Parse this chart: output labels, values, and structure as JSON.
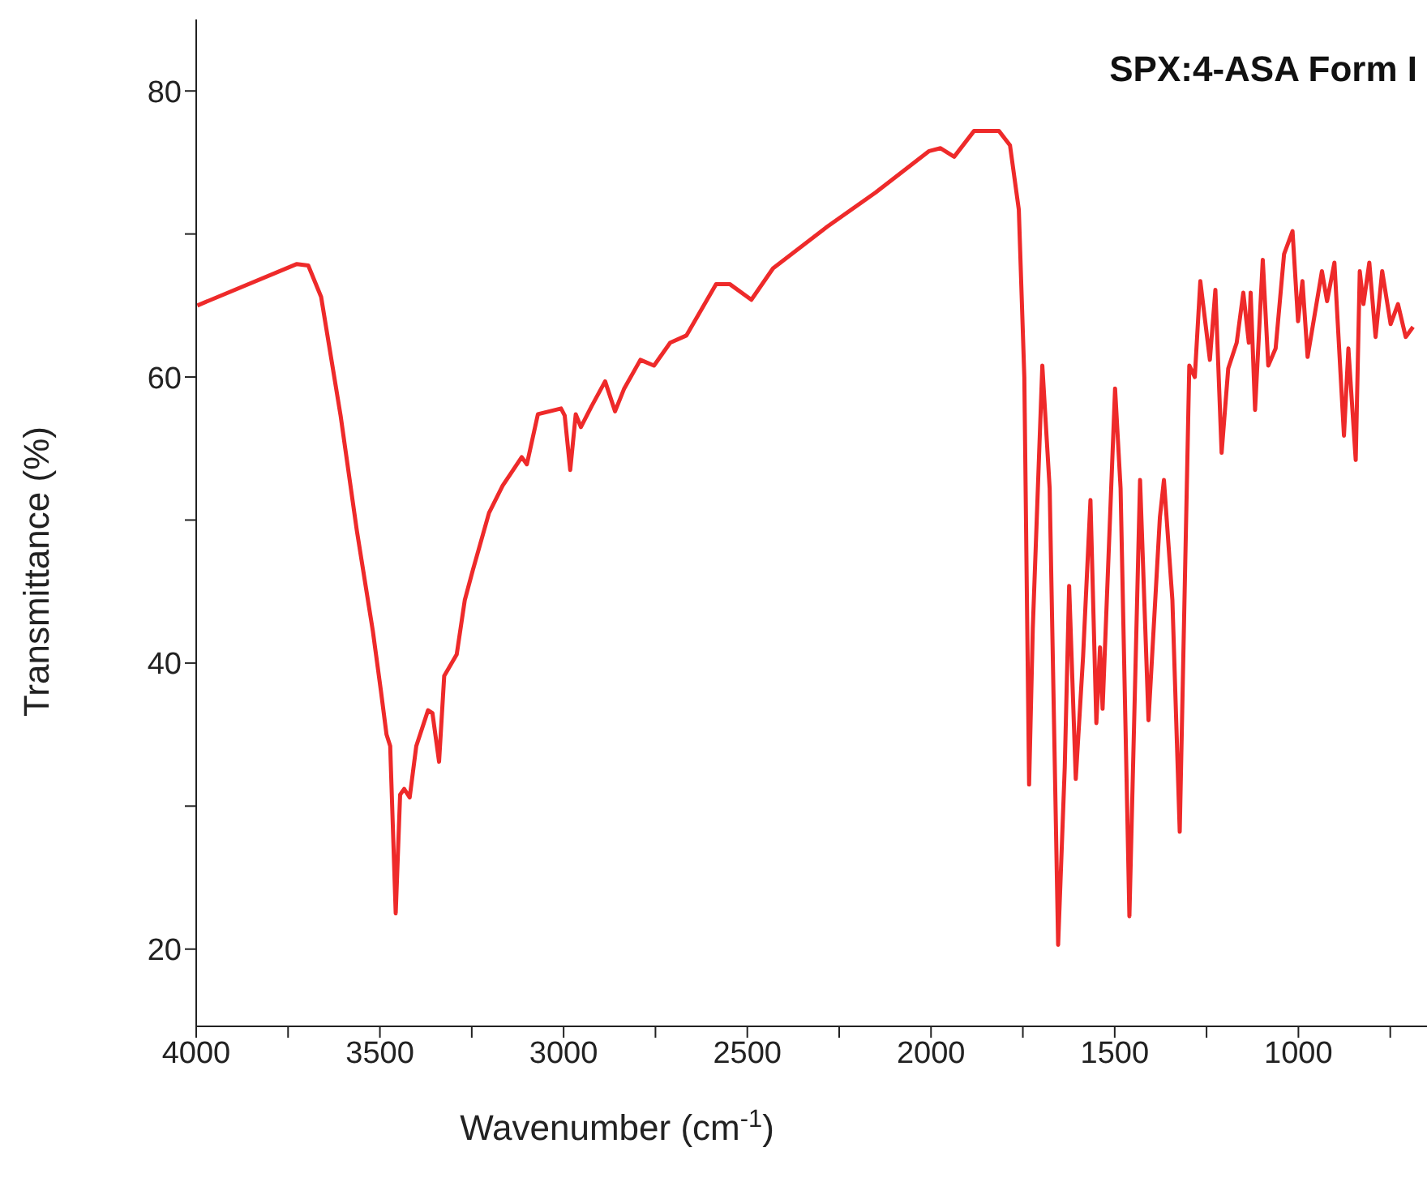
{
  "chart_data": {
    "type": "line",
    "title": "SPX:4-ASA Form I",
    "xlabel": "Wavenumber (cm$^{-1}$)",
    "ylabel": "Transmittance (%)",
    "xlim": [
      4000,
      650
    ],
    "ylim": [
      14.6,
      85
    ],
    "xticks": [
      4000,
      {
        "value": 3750,
        "label": null
      },
      3500,
      {
        "value": 3250,
        "label": null
      },
      3000,
      {
        "value": 2750,
        "label": null
      },
      2500,
      {
        "value": 2250,
        "label": null
      },
      2000,
      {
        "value": 1750,
        "label": null
      },
      1500,
      {
        "value": 1250,
        "label": null
      },
      1000,
      {
        "value": 750,
        "label": null
      }
    ],
    "yticks": [
      20,
      {
        "value": 30,
        "label": null
      },
      40,
      {
        "value": 50,
        "label": null
      },
      60,
      {
        "value": 70,
        "label": null
      },
      80
    ],
    "series": [
      {
        "color": "#ee2a2a",
        "x": [
          3997,
          3726,
          3695,
          3660,
          3607,
          3563,
          3519,
          3497,
          3482,
          3472,
          3457,
          3445,
          3434,
          3419,
          3401,
          3369,
          3357,
          3339,
          3325,
          3291,
          3269,
          3247,
          3203,
          3166,
          3114,
          3100,
          3070,
          3007,
          2997,
          2982,
          2967,
          2953,
          2923,
          2887,
          2860,
          2835,
          2791,
          2754,
          2710,
          2666,
          2585,
          2548,
          2489,
          2430,
          2283,
          2151,
          2005,
          1974,
          1937,
          1883,
          1815,
          1785,
          1761,
          1746,
          1738,
          1733,
          1723,
          1697,
          1677,
          1654,
          1636,
          1624,
          1606,
          1586,
          1566,
          1550,
          1540,
          1533,
          1499,
          1484,
          1460,
          1431,
          1408,
          1377,
          1366,
          1343,
          1323,
          1297,
          1282,
          1267,
          1241,
          1226,
          1209,
          1191,
          1168,
          1150,
          1135,
          1130,
          1118,
          1097,
          1082,
          1062,
          1039,
          1016,
          1001,
          989,
          975,
          936,
          922,
          902,
          876,
          864,
          844,
          833,
          823,
          807,
          790,
          772,
          749,
          729,
          708,
          688
        ],
        "values": [
          65.0,
          67.9,
          67.8,
          65.6,
          57.3,
          49.3,
          42.2,
          38.0,
          35.0,
          34.2,
          22.5,
          30.8,
          31.2,
          30.6,
          34.2,
          36.7,
          36.5,
          33.1,
          39.1,
          40.6,
          44.4,
          46.5,
          50.5,
          52.4,
          54.4,
          53.9,
          57.4,
          57.8,
          57.3,
          53.5,
          57.4,
          56.5,
          58.0,
          59.7,
          57.6,
          59.2,
          61.2,
          60.8,
          62.4,
          62.9,
          66.5,
          66.5,
          65.4,
          67.6,
          70.5,
          72.9,
          75.8,
          76.0,
          75.4,
          77.2,
          77.2,
          76.2,
          71.7,
          60.0,
          42.4,
          31.5,
          42.4,
          60.8,
          52.2,
          20.3,
          32.7,
          45.4,
          31.9,
          40.5,
          51.4,
          35.8,
          41.1,
          36.8,
          59.2,
          52.2,
          22.3,
          52.8,
          36.0,
          50.2,
          52.8,
          44.4,
          28.2,
          60.8,
          60.0,
          66.7,
          61.2,
          66.1,
          54.7,
          60.6,
          62.4,
          65.9,
          62.4,
          65.9,
          57.7,
          68.2,
          60.8,
          62.0,
          68.6,
          70.2,
          63.9,
          66.7,
          61.4,
          67.4,
          65.3,
          68.0,
          55.9,
          62.0,
          54.2,
          67.4,
          65.1,
          68.0,
          62.8,
          67.4,
          63.7,
          65.1,
          62.8,
          63.5
        ]
      }
    ]
  }
}
